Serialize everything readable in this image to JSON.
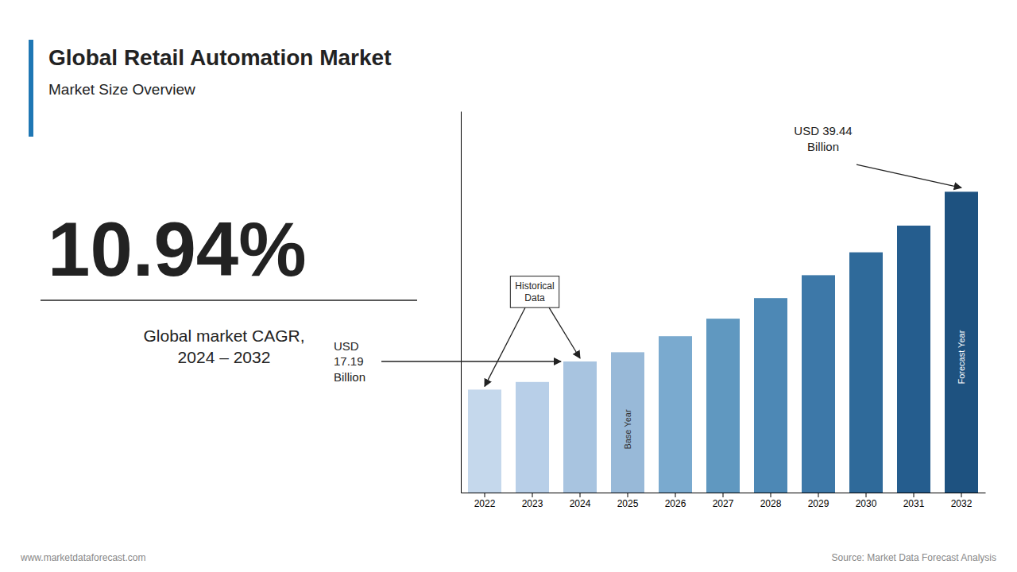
{
  "chart_data": {
    "type": "bar",
    "title": "Global Retail Automation Market",
    "subtitle": "Market Size Overview",
    "categories": [
      2022,
      2023,
      2024,
      2025,
      2026,
      2027,
      2028,
      2029,
      2030,
      2031,
      2032
    ],
    "values": [
      13.5,
      14.5,
      17.19,
      18.4,
      20.5,
      22.8,
      25.5,
      28.5,
      31.5,
      35.0,
      39.44
    ],
    "colors": [
      "#c5d8ec",
      "#b8cfe8",
      "#a8c4e0",
      "#98b9d8",
      "#7aaacf",
      "#6098c0",
      "#4d88b5",
      "#3d78a8",
      "#2f6a9a",
      "#255d8e",
      "#1e5280"
    ],
    "ylim": [
      0,
      50
    ],
    "tick_labels": "x",
    "grid": false,
    "annotations": [
      "Base Year",
      "Forecast Year",
      "Historical\nData",
      "USD 39.44\nBillion",
      "10.94%",
      "USD\n17.19\nBillion",
      "Global market CAGR,\n2024 – 2032",
      "www.marketdataforecast.com",
      "Source: Market Data Forecast Analysis"
    ]
  }
}
